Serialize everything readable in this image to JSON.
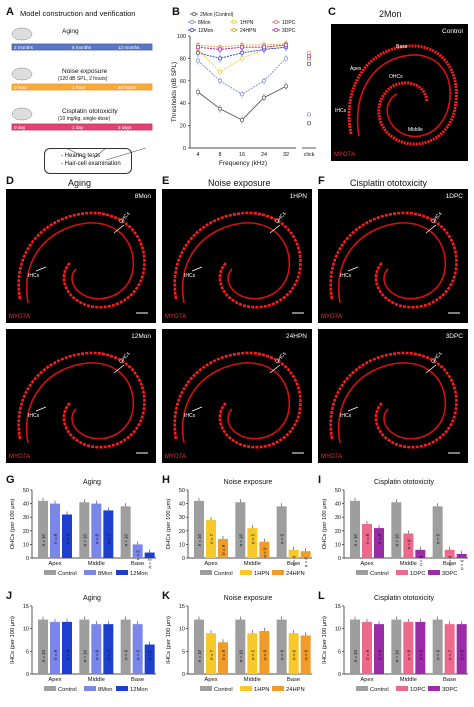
{
  "panelA": {
    "letter": "A",
    "title": "Model construction and verification",
    "rows": [
      {
        "label": "Aging",
        "timeline": [
          "2 months",
          "8 months",
          "12 months"
        ],
        "color": "#3f5fb6"
      },
      {
        "label": "Noise exposure",
        "sublabel": "(120 dB SPL, 2 hours)",
        "timeline": [
          "0 hour",
          "1 hour",
          "24 hours"
        ],
        "color": "#f39b1c"
      },
      {
        "label": "Cisplatin ototoxicity",
        "sublabel": "(10 mg/kg, single-dose)",
        "timeline": [
          "0 day",
          "1 day",
          "3 days"
        ],
        "color": "#d6265c"
      }
    ],
    "box": [
      "- Hearing tests",
      "- Hair-cell examination"
    ]
  },
  "panelB": {
    "letter": "B",
    "ylabel": "Thresholds (dB SPL)",
    "xlabel": "Frequency (kHz)",
    "legend": [
      {
        "name": "2Mon (Control)",
        "color": "#555555"
      },
      {
        "name": "8Mon",
        "color": "#7a86e8"
      },
      {
        "name": "1HPN",
        "color": "#f7c82a"
      },
      {
        "name": "1DPC",
        "color": "#ee6a8d"
      },
      {
        "name": "12Mon",
        "color": "#1d3fd0"
      },
      {
        "name": "24HPN",
        "color": "#f19b2a"
      },
      {
        "name": "3DPC",
        "color": "#9a2ca8"
      }
    ],
    "xticks": [
      "4",
      "8",
      "16",
      "24",
      "32",
      "click"
    ],
    "yticks": [
      "0",
      "20",
      "40",
      "60",
      "80",
      "100"
    ]
  },
  "chart_data": {
    "type": "line",
    "x": [
      4,
      8,
      16,
      24,
      32
    ],
    "xlabel": "Frequency (kHz)",
    "ylabel": "Thresholds (dB SPL)",
    "ylim": [
      0,
      100
    ],
    "series": [
      {
        "name": "2Mon (Control)",
        "values": [
          50,
          35,
          25,
          45,
          55
        ],
        "click": 22
      },
      {
        "name": "8Mon",
        "values": [
          78,
          60,
          48,
          60,
          80
        ],
        "click": 30
      },
      {
        "name": "12Mon",
        "values": [
          88,
          68,
          80,
          88,
          90
        ],
        "click": 78
      },
      {
        "name": "1HPN",
        "values": [
          90,
          88,
          90,
          90,
          92
        ],
        "click": 80
      },
      {
        "name": "24HPN",
        "values": [
          85,
          80,
          85,
          88,
          90
        ],
        "click": 75
      },
      {
        "name": "1DPC",
        "values": [
          92,
          90,
          92,
          92,
          93
        ],
        "click": 85
      },
      {
        "name": "3DPC",
        "values": [
          90,
          88,
          90,
          90,
          92
        ],
        "click": 82
      }
    ]
  },
  "panelC": {
    "letter": "C",
    "title": "2Mon",
    "corner": "Control",
    "labels": [
      "Base",
      "Apex",
      "OHCs",
      "IHCs",
      "Middle"
    ],
    "tag": "MYO7A"
  },
  "rowD": {
    "headers": [
      {
        "letter": "D",
        "title": "Aging"
      },
      {
        "letter": "E",
        "title": "Noise exposure"
      },
      {
        "letter": "F",
        "title": "Cisplatin ototoxicity"
      }
    ],
    "images": [
      {
        "corner": "8Mon",
        "tag": "MYO7A",
        "ohcs": "OHCs",
        "ihcs": "IHCs"
      },
      {
        "corner": "1HPN",
        "tag": "MYO7A",
        "ohcs": "OHCs",
        "ihcs": "IHCs"
      },
      {
        "corner": "1DPC",
        "tag": "MYO7A",
        "ohcs": "OHCs",
        "ihcs": "IHCs"
      },
      {
        "corner": "12Mon",
        "tag": "MYO7A",
        "ohcs": "OHCs",
        "ihcs": "IHCs"
      },
      {
        "corner": "24HPN",
        "tag": "MYO7A",
        "ohcs": "OHCs",
        "ihcs": "IHCs"
      },
      {
        "corner": "3DPC",
        "tag": "MYO7A",
        "ohcs": "OHCs",
        "ihcs": "IHCs"
      }
    ]
  },
  "bars": {
    "regions": [
      "Apex",
      "Middle",
      "Base"
    ],
    "ohc_ylabel": "OHCs (per 100 μm)",
    "ihc_ylabel": "IHCs (per 100 μm)",
    "ohc_yticks": [
      "0",
      "10",
      "20",
      "30",
      "40",
      "50"
    ],
    "ihc_yticks": [
      "0",
      "5",
      "10",
      "15"
    ],
    "panels": [
      {
        "letter": "G",
        "title": "Aging",
        "kind": "ohc",
        "legend": [
          "Control",
          "8Mon",
          "12Mon"
        ],
        "colors": [
          "#9e9e9e",
          "#7a86e8",
          "#1d3fd0"
        ],
        "values": [
          [
            42,
            40,
            32
          ],
          [
            41,
            40,
            35
          ],
          [
            38,
            10,
            4
          ]
        ],
        "n": [
          [
            "n = 10",
            "n = 8",
            "n = 5"
          ],
          [
            "n = 10",
            "n = 8",
            "n = 7"
          ],
          [
            "n = 10",
            "n = 5",
            "n = 5"
          ]
        ]
      },
      {
        "letter": "H",
        "title": "Noise exposure",
        "kind": "ohc",
        "legend": [
          "Control",
          "1HPN",
          "24HPN"
        ],
        "colors": [
          "#9e9e9e",
          "#f7c82a",
          "#f19b2a"
        ],
        "values": [
          [
            42,
            28,
            14
          ],
          [
            41,
            22,
            12
          ],
          [
            38,
            6,
            5
          ]
        ],
        "n": [
          [
            "n = 10",
            "n = 7",
            "n = 9"
          ],
          [
            "n = 10",
            "n = 5",
            "n = 9"
          ],
          [
            "n = 9",
            "n = 6",
            "n = 6"
          ]
        ]
      },
      {
        "letter": "I",
        "title": "Cisplatin ototoxicity",
        "kind": "ohc",
        "legend": [
          "Control",
          "1DPC",
          "3DPC"
        ],
        "colors": [
          "#9e9e9e",
          "#ee6a8d",
          "#9a2ca8"
        ],
        "values": [
          [
            42,
            25,
            22
          ],
          [
            41,
            18,
            6
          ],
          [
            38,
            6,
            3
          ]
        ],
        "n": [
          [
            "n = 10",
            "n = 8",
            "n = 8"
          ],
          [
            "n = 10",
            "n = 8",
            "n = 6"
          ],
          [
            "n = 9",
            "n = 6",
            "n = 6"
          ]
        ]
      },
      {
        "letter": "J",
        "title": "Aging",
        "kind": "ihc",
        "legend": [
          "Control",
          "8Mon",
          "12Mon"
        ],
        "colors": [
          "#9e9e9e",
          "#7a86e8",
          "#1d3fd0"
        ],
        "values": [
          [
            12,
            11.5,
            11.5
          ],
          [
            12,
            11,
            11
          ],
          [
            12,
            11,
            6.5
          ]
        ],
        "n": [
          [
            "n = 10",
            "n = 8",
            "n = 5"
          ],
          [
            "n = 10",
            "n = 8",
            "n = 7"
          ],
          [
            "n = 9",
            "n = 5",
            "n = 5"
          ]
        ]
      },
      {
        "letter": "K",
        "title": "Noise exposure",
        "kind": "ihc",
        "legend": [
          "Control",
          "1HPN",
          "24HPN"
        ],
        "colors": [
          "#9e9e9e",
          "#f7c82a",
          "#f19b2a"
        ],
        "values": [
          [
            12,
            9,
            7
          ],
          [
            12,
            9,
            9.5
          ],
          [
            12,
            9,
            8.5
          ]
        ],
        "n": [
          [
            "n = 10",
            "n = 7",
            "n = 9"
          ],
          [
            "n = 10",
            "n = 5",
            "n = 9"
          ],
          [
            "n = 9",
            "n = 6",
            "n = 6"
          ]
        ]
      },
      {
        "letter": "L",
        "title": "Cisplatin ototoxicity",
        "kind": "ihc",
        "legend": [
          "Control",
          "1DPC",
          "3DPC"
        ],
        "colors": [
          "#9e9e9e",
          "#ee6a8d",
          "#9a2ca8"
        ],
        "values": [
          [
            12,
            11.5,
            11
          ],
          [
            12,
            11.5,
            11.5
          ],
          [
            12,
            11,
            11
          ]
        ],
        "n": [
          [
            "n = 10",
            "n = 8",
            "n = 6"
          ],
          [
            "n = 10",
            "n = 8",
            "n = 6"
          ],
          [
            "n = 9",
            "n = 7",
            "n = 6"
          ]
        ]
      }
    ]
  }
}
